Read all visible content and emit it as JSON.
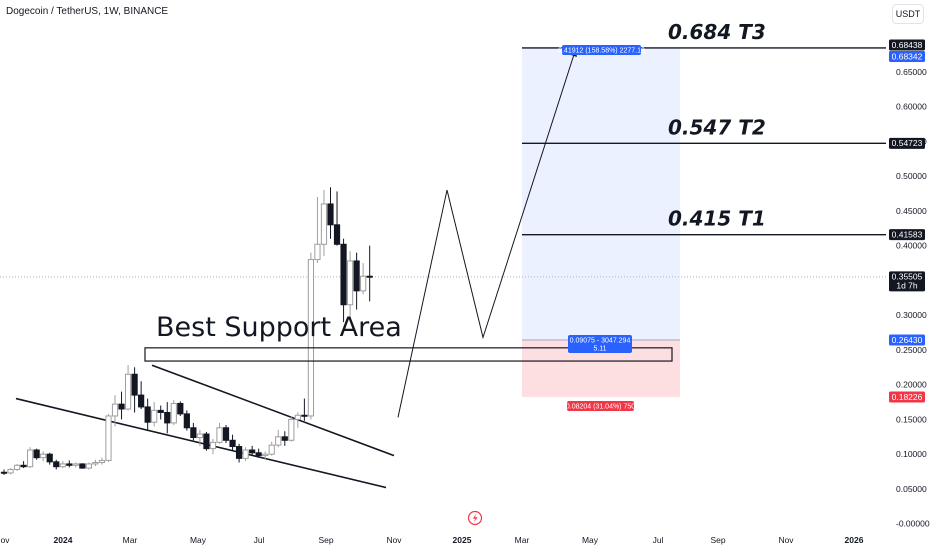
{
  "header": {
    "symbol_title": "Dogecoin / TetherUS, 1W, BINANCE",
    "currency_button": "USDT"
  },
  "annotations": {
    "support_label": "Best Support Area",
    "targets": [
      {
        "label": "0.684 T3",
        "price": 0.68438
      },
      {
        "label": "0.547 T2",
        "price": 0.54723
      },
      {
        "label": "0.415 T1",
        "price": 0.41583
      }
    ],
    "position": {
      "target_info": "0.41912 (158.58%) 2277.18",
      "entry_info_line1": "0.09075 - 3047.294",
      "entry_info_line2": "5.11",
      "stop_info": "0.08204 (31.04%) 750",
      "target_price": 0.68342,
      "entry_price": 0.2643,
      "stop_price": 0.18226
    }
  },
  "price_badges": [
    {
      "text": "0.68438",
      "price": 0.68438,
      "bg": "#131722",
      "fg": "#ffffff"
    },
    {
      "text": "0.68342",
      "price": 0.68342,
      "bg": "#2962ff",
      "fg": "#ffffff"
    },
    {
      "text": "0.54723",
      "price": 0.54723,
      "bg": "#131722",
      "fg": "#ffffff"
    },
    {
      "text": "0.41583",
      "price": 0.41583,
      "bg": "#131722",
      "fg": "#ffffff"
    },
    {
      "text": "0.35505",
      "sub": "1d 7h",
      "price": 0.35505,
      "bg": "#131722",
      "fg": "#ffffff"
    },
    {
      "text": "0.26430",
      "price": 0.2643,
      "bg": "#2962ff",
      "fg": "#ffffff"
    },
    {
      "text": "0.18226",
      "price": 0.18226,
      "bg": "#f23645",
      "fg": "#ffffff"
    }
  ],
  "chart_data": {
    "type": "candlestick",
    "title": "Dogecoin / TetherUS, 1W, BINANCE",
    "y_axis_ticks": [
      "0.65000",
      "0.60000",
      "0.55000",
      "0.50000",
      "0.45000",
      "0.40000",
      "0.30000",
      "0.25000",
      "0.20000",
      "0.15000",
      "0.10000",
      "0.05000",
      "-0.00000"
    ],
    "y_tick_values": [
      0.65,
      0.6,
      0.55,
      0.5,
      0.45,
      0.4,
      0.3,
      0.25,
      0.2,
      0.15,
      0.1,
      0.05,
      0.0
    ],
    "x_axis_ticks": [
      "Nov",
      "2024",
      "Mar",
      "May",
      "Jul",
      "Sep",
      "Nov",
      "2025",
      "Mar",
      "May",
      "Jul",
      "Sep",
      "Nov",
      "2026"
    ],
    "bold_x_ticks": [
      "2024",
      "2025",
      "2026"
    ],
    "last_price": 0.35505,
    "candles": [
      [
        0.074,
        0.078,
        0.07,
        0.073
      ],
      [
        0.073,
        0.08,
        0.071,
        0.078
      ],
      [
        0.078,
        0.086,
        0.076,
        0.084
      ],
      [
        0.084,
        0.09,
        0.08,
        0.082
      ],
      [
        0.082,
        0.11,
        0.08,
        0.106
      ],
      [
        0.106,
        0.108,
        0.092,
        0.095
      ],
      [
        0.095,
        0.104,
        0.09,
        0.1
      ],
      [
        0.1,
        0.102,
        0.085,
        0.089
      ],
      [
        0.089,
        0.092,
        0.078,
        0.082
      ],
      [
        0.082,
        0.09,
        0.08,
        0.086
      ],
      [
        0.086,
        0.091,
        0.081,
        0.084
      ],
      [
        0.084,
        0.088,
        0.081,
        0.086
      ],
      [
        0.086,
        0.087,
        0.079,
        0.08
      ],
      [
        0.08,
        0.088,
        0.078,
        0.086
      ],
      [
        0.086,
        0.092,
        0.083,
        0.088
      ],
      [
        0.088,
        0.095,
        0.085,
        0.091
      ],
      [
        0.091,
        0.158,
        0.089,
        0.155
      ],
      [
        0.155,
        0.185,
        0.14,
        0.172
      ],
      [
        0.172,
        0.19,
        0.15,
        0.165
      ],
      [
        0.165,
        0.228,
        0.163,
        0.215
      ],
      [
        0.215,
        0.225,
        0.16,
        0.185
      ],
      [
        0.185,
        0.205,
        0.165,
        0.168
      ],
      [
        0.168,
        0.18,
        0.135,
        0.146
      ],
      [
        0.146,
        0.175,
        0.14,
        0.163
      ],
      [
        0.163,
        0.17,
        0.15,
        0.16
      ],
      [
        0.16,
        0.175,
        0.13,
        0.145
      ],
      [
        0.145,
        0.178,
        0.142,
        0.173
      ],
      [
        0.173,
        0.176,
        0.155,
        0.158
      ],
      [
        0.158,
        0.163,
        0.134,
        0.138
      ],
      [
        0.138,
        0.145,
        0.12,
        0.124
      ],
      [
        0.124,
        0.135,
        0.112,
        0.129
      ],
      [
        0.129,
        0.132,
        0.105,
        0.108
      ],
      [
        0.108,
        0.122,
        0.1,
        0.117
      ],
      [
        0.117,
        0.145,
        0.115,
        0.138
      ],
      [
        0.138,
        0.142,
        0.116,
        0.12
      ],
      [
        0.12,
        0.128,
        0.105,
        0.111
      ],
      [
        0.111,
        0.115,
        0.088,
        0.094
      ],
      [
        0.094,
        0.11,
        0.09,
        0.106
      ],
      [
        0.106,
        0.112,
        0.098,
        0.102
      ],
      [
        0.102,
        0.108,
        0.095,
        0.098
      ],
      [
        0.098,
        0.104,
        0.093,
        0.1
      ],
      [
        0.1,
        0.118,
        0.098,
        0.113
      ],
      [
        0.113,
        0.135,
        0.11,
        0.125
      ],
      [
        0.125,
        0.133,
        0.112,
        0.12
      ],
      [
        0.12,
        0.155,
        0.118,
        0.15
      ],
      [
        0.15,
        0.16,
        0.138,
        0.156
      ],
      [
        0.156,
        0.18,
        0.148,
        0.155
      ],
      [
        0.155,
        0.39,
        0.15,
        0.38
      ],
      [
        0.38,
        0.47,
        0.375,
        0.402
      ],
      [
        0.402,
        0.48,
        0.385,
        0.46
      ],
      [
        0.46,
        0.484,
        0.41,
        0.43
      ],
      [
        0.43,
        0.478,
        0.4,
        0.402
      ],
      [
        0.402,
        0.41,
        0.29,
        0.315
      ],
      [
        0.315,
        0.392,
        0.298,
        0.378
      ],
      [
        0.378,
        0.39,
        0.308,
        0.335
      ],
      [
        0.335,
        0.375,
        0.33,
        0.356
      ],
      [
        0.356,
        0.4,
        0.32,
        0.355
      ]
    ],
    "best_support_zone": [
      0.234,
      0.253
    ],
    "falling_wedge": {
      "upper": [
        [
          0.228,
          "2024-03"
        ],
        [
          0.098,
          "2024-11"
        ]
      ],
      "lower": [
        [
          0.18,
          "2023-09"
        ],
        [
          0.052,
          "2024-11"
        ]
      ]
    },
    "projection_path": [
      0.153,
      0.48,
      0.268,
      0.684
    ]
  }
}
